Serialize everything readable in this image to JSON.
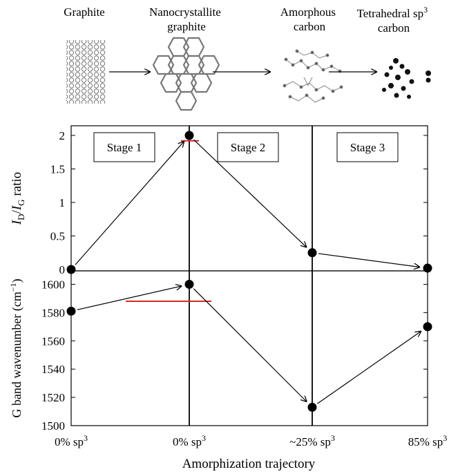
{
  "header": {
    "stages": [
      {
        "name": "Graphite"
      },
      {
        "name": "Nanocrystallite graphite",
        "lines": [
          "Nanocrystallite",
          "graphite"
        ]
      },
      {
        "name": "Amorphous carbon",
        "lines": [
          "Amorphous",
          "carbon"
        ]
      },
      {
        "name": "Tetrahedral sp3 carbon",
        "lines": [
          "Tetrahedral sp",
          "carbon"
        ],
        "sup": "3"
      }
    ]
  },
  "chart_data": {
    "type": "line",
    "categories": [
      "0% sp3",
      "0% sp3",
      "~25% sp3",
      "85% sp3"
    ],
    "x_tick_labels": [
      {
        "base": "0% sp",
        "sup": "3"
      },
      {
        "base": "0% sp",
        "sup": "3"
      },
      {
        "base": "~25% sp",
        "sup": "3"
      },
      {
        "base": "85% sp",
        "sup": "3"
      }
    ],
    "xlabel": "Amorphization trajectory",
    "stage_labels": [
      "Stage 1",
      "Stage 2",
      "Stage 3"
    ],
    "top_panel": {
      "ylabel": "ID/IG ratio",
      "ylabel_parts": {
        "I1": "I",
        "sub1": "D",
        "slash": "/",
        "I2": "I",
        "sub2": "G",
        "rest": " ratio"
      },
      "ylim": [
        0,
        2
      ],
      "yticks": [
        0,
        0.5,
        1,
        1.5,
        2
      ],
      "ytick_labels": [
        "0",
        "0.5",
        "1",
        "1.5",
        "2"
      ],
      "values": [
        0,
        2.0,
        0.25,
        0.02
      ],
      "reference_line": {
        "value": 1.92,
        "color": "#d62728"
      }
    },
    "bottom_panel": {
      "ylabel": "G band wavenumber (cm−1)",
      "ylabel_parts": {
        "main": "G band wavenumber (cm",
        "sup": "−1",
        "close": ")"
      },
      "ylim": [
        1500,
        1610
      ],
      "yticks": [
        1500,
        1520,
        1540,
        1560,
        1580,
        1600
      ],
      "ytick_labels": [
        "1500",
        "1520",
        "1540",
        "1560",
        "1580",
        "1600"
      ],
      "values": [
        1581,
        1600,
        1513,
        1570
      ],
      "reference_line": {
        "value": 1588,
        "color": "#d62728"
      }
    },
    "grid": false
  }
}
